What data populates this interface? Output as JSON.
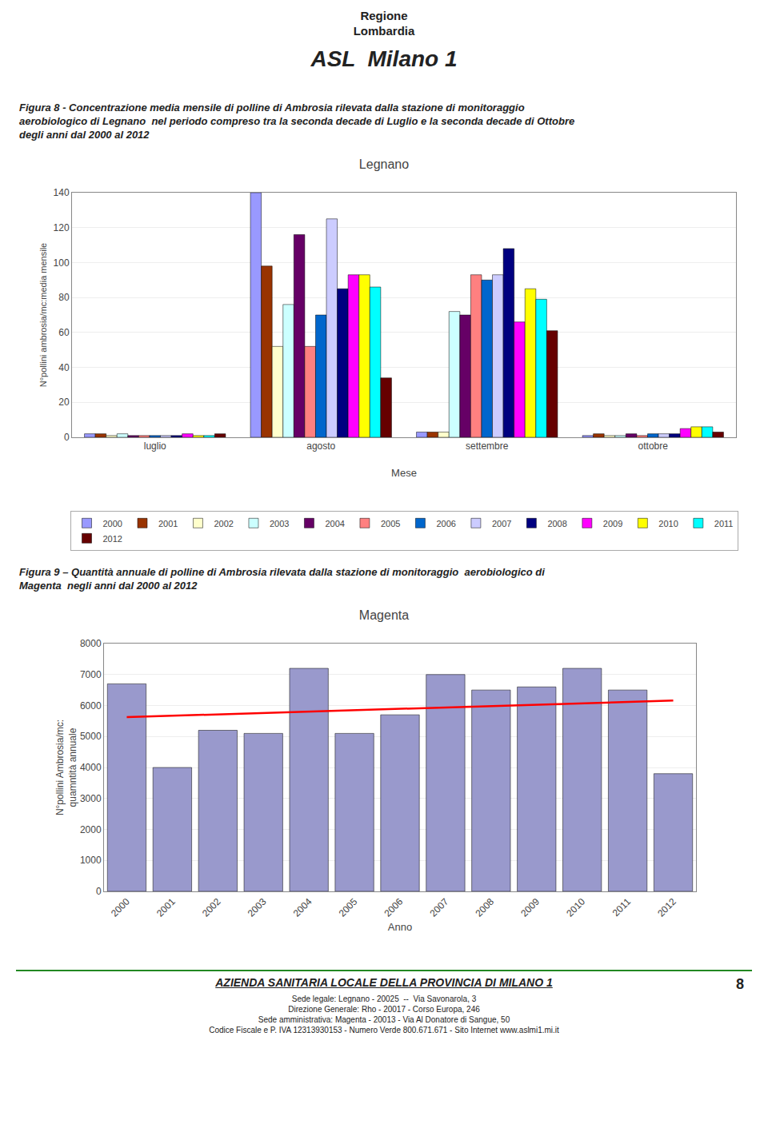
{
  "chart_data": [
    {
      "type": "bar",
      "title": "Legnano",
      "xlabel": "Mese",
      "ylabel": "N°pollini ambrosia/mc:media mensile",
      "categories": [
        "luglio",
        "agosto",
        "settembre",
        "ottobre"
      ],
      "series": [
        {
          "name": "2000",
          "color": "#9999FF",
          "values": [
            2,
            140,
            3,
            1
          ]
        },
        {
          "name": "2001",
          "color": "#993300",
          "values": [
            2,
            98,
            3,
            2
          ]
        },
        {
          "name": "2002",
          "color": "#FFFFCC",
          "values": [
            1,
            52,
            3,
            1
          ]
        },
        {
          "name": "2003",
          "color": "#CCFFFF",
          "values": [
            2,
            76,
            72,
            1
          ]
        },
        {
          "name": "2004",
          "color": "#660066",
          "values": [
            1,
            116,
            70,
            2
          ]
        },
        {
          "name": "2005",
          "color": "#FF8080",
          "values": [
            1,
            52,
            93,
            1
          ]
        },
        {
          "name": "2006",
          "color": "#0066CC",
          "values": [
            1,
            70,
            90,
            2
          ]
        },
        {
          "name": "2007",
          "color": "#CCCCFF",
          "values": [
            1,
            125,
            93,
            2
          ]
        },
        {
          "name": "2008",
          "color": "#000080",
          "values": [
            1,
            85,
            108,
            2
          ]
        },
        {
          "name": "2009",
          "color": "#FF00FF",
          "values": [
            2,
            93,
            66,
            5
          ]
        },
        {
          "name": "2010",
          "color": "#FFFF00",
          "values": [
            1,
            93,
            85,
            6
          ]
        },
        {
          "name": "2011",
          "color": "#00FFFF",
          "values": [
            1,
            86,
            79,
            6
          ]
        },
        {
          "name": "2012",
          "color": "#660000",
          "values": [
            2,
            34,
            61,
            3
          ]
        }
      ],
      "ylim": [
        0,
        140
      ],
      "yticks": [
        0,
        20,
        40,
        60,
        80,
        100,
        120,
        140
      ],
      "grid": true,
      "legend": "bottom",
      "annotations": [
        "Regione",
        "Lombardia",
        "ASL  Milano 1",
        "Figura 8 - Concentrazione media mensile di polline di Ambrosia rilevata dalla stazione di monitoraggio\naerobiologico di Legnano  nel periodo compreso tra la seconda decade di Luglio e la seconda decade di Ottobre\ndegli anni dal 2000 al 2012"
      ]
    },
    {
      "type": "bar",
      "title": "Magenta",
      "xlabel": "Anno",
      "ylabel": "N°pollini Ambrosia/mc:\nquamntità annuale",
      "categories": [
        "2000",
        "2001",
        "2002",
        "2003",
        "2004",
        "2005",
        "2006",
        "2007",
        "2008",
        "2009",
        "2010",
        "2011",
        "2012"
      ],
      "series": [
        {
          "type": "bar",
          "color": "#9999CC",
          "values": [
            6700,
            4000,
            5200,
            5100,
            7200,
            5100,
            5700,
            7000,
            6500,
            6600,
            7200,
            6500,
            3800
          ]
        },
        {
          "type": "line",
          "color": "#FF0000",
          "values": [
            5625.274725,
            5669.78022,
            5714.285714,
            5758.791209,
            5803.296703,
            5847.802198,
            5892.307692,
            5936.813187,
            5981.318681,
            6025.824176,
            6070.32967,
            6114.835165,
            6159.340659
          ]
        }
      ],
      "ylim": [
        0,
        8000
      ],
      "yticks": [
        0,
        1000,
        2000,
        3000,
        4000,
        5000,
        6000,
        7000,
        8000
      ],
      "grid": true,
      "annotations": [
        "Figura 9 – Quantità annuale di polline di Ambrosia rilevata dalla stazione di monitoraggio  aerobiologico di\nMagenta  negli anni dal 2000 al 2012",
        "AZIENDA SANITARIA LOCALE DELLA PROVINCIA DI MILANO 1",
        "Sede legale: Legnano - 20025  --  Via Savonarola, 3\nDirezione Generale: Rho - 20017 - Corso Europa, 246\nSede amministrativa: Magenta - 20013 - Via Al Donatore di Sangue, 50\nCodice Fiscale e P. IVA 12313930153 - Numero Verde 800.671.671 - Sito Internet www.aslmi1.mi.it",
        "8"
      ]
    }
  ]
}
